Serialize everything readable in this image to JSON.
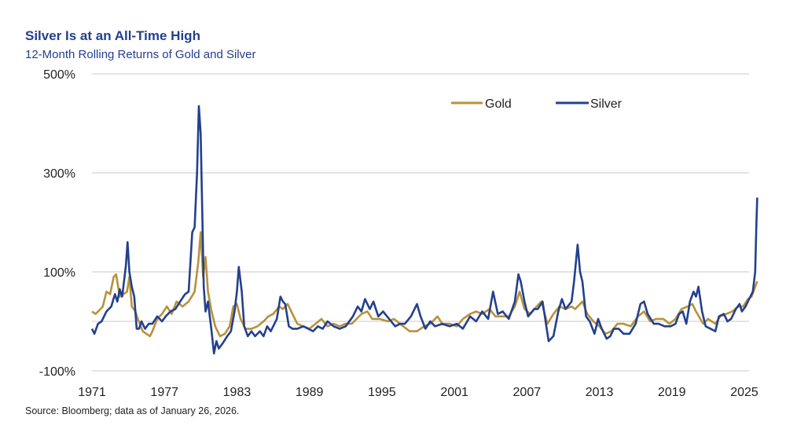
{
  "header": {
    "title": "Silver Is at an All-Time High",
    "subtitle": "12-Month Rolling Returns of Gold and Silver"
  },
  "footer": {
    "source": "Source: Bloomberg; data as of January 26, 2026."
  },
  "chart_data": {
    "type": "line",
    "title": "Silver Is at an All-Time High",
    "subtitle": "12-Month Rolling Returns of Gold and Silver",
    "xlabel": "",
    "ylabel": "",
    "xlim": [
      1971,
      2026.07
    ],
    "ylim": [
      -100,
      500
    ],
    "y_ticks": [
      500,
      300,
      100,
      -100
    ],
    "y_tick_labels": [
      "500%",
      "300%",
      "100%",
      "-100%"
    ],
    "gridlines_at": [
      500,
      300,
      100,
      0,
      -100
    ],
    "x_ticks": [
      1971,
      1977,
      1983,
      1989,
      1995,
      2001,
      2007,
      2013,
      2019,
      2025
    ],
    "x_tick_labels": [
      "1971",
      "1977",
      "1983",
      "1989",
      "1995",
      "2001",
      "2007",
      "2013",
      "2019",
      "2025"
    ],
    "grid": true,
    "legend_position": "top-right",
    "series": [
      {
        "name": "Gold",
        "color": "#b8913a",
        "x": [
          1971.0,
          1971.3,
          1971.6,
          1971.9,
          1972.2,
          1972.5,
          1972.8,
          1973.0,
          1973.3,
          1973.6,
          1973.9,
          1974.1,
          1974.3,
          1974.6,
          1974.8,
          1975.2,
          1975.5,
          1975.8,
          1976.0,
          1976.4,
          1976.8,
          1977.2,
          1977.6,
          1978.0,
          1978.5,
          1979.0,
          1979.5,
          1979.8,
          1980.0,
          1980.2,
          1980.4,
          1980.6,
          1980.9,
          1981.2,
          1981.6,
          1982.0,
          1982.4,
          1982.7,
          1983.0,
          1983.3,
          1983.7,
          1984.2,
          1984.7,
          1985.2,
          1985.6,
          1986.0,
          1986.5,
          1986.8,
          1987.2,
          1987.6,
          1988.0,
          1988.5,
          1989.0,
          1989.5,
          1990.0,
          1990.5,
          1991.0,
          1991.5,
          1992.0,
          1992.5,
          1993.3,
          1993.8,
          1994.2,
          1994.8,
          1995.5,
          1996.0,
          1996.5,
          1997.3,
          1997.9,
          1998.5,
          1999.0,
          1999.6,
          2000.0,
          2000.6,
          2001.2,
          2001.7,
          2002.3,
          2002.8,
          2003.3,
          2003.9,
          2004.4,
          2004.9,
          2005.5,
          2006.0,
          2006.4,
          2006.8,
          2007.3,
          2007.8,
          2008.2,
          2008.7,
          2009.2,
          2009.7,
          2010.2,
          2010.7,
          2011.0,
          2011.6,
          2012.0,
          2012.5,
          2013.0,
          2013.5,
          2014.0,
          2014.5,
          2015.0,
          2015.6,
          2016.2,
          2016.7,
          2017.2,
          2017.7,
          2018.3,
          2018.8,
          2019.3,
          2019.8,
          2020.3,
          2020.7,
          2021.0,
          2021.6,
          2022.0,
          2022.6,
          2023.0,
          2023.5,
          2024.0,
          2024.5,
          2024.9,
          2025.3,
          2025.6,
          2025.9,
          2026.07
        ],
        "values": [
          20,
          15,
          22,
          30,
          60,
          55,
          90,
          95,
          50,
          55,
          60,
          90,
          30,
          20,
          5,
          -20,
          -25,
          -30,
          -20,
          5,
          15,
          30,
          15,
          40,
          30,
          40,
          60,
          120,
          180,
          90,
          130,
          60,
          20,
          -10,
          -30,
          -25,
          -10,
          30,
          35,
          5,
          -15,
          -15,
          -10,
          0,
          10,
          15,
          30,
          25,
          35,
          15,
          -5,
          -10,
          -15,
          -5,
          5,
          -10,
          -5,
          -10,
          -5,
          -5,
          15,
          20,
          5,
          5,
          0,
          5,
          -5,
          -20,
          -20,
          -10,
          -5,
          10,
          -5,
          -5,
          -10,
          5,
          15,
          20,
          15,
          25,
          10,
          10,
          10,
          30,
          60,
          25,
          15,
          30,
          40,
          -5,
          15,
          30,
          25,
          30,
          25,
          40,
          15,
          0,
          -10,
          -25,
          -20,
          -5,
          -5,
          -10,
          10,
          20,
          0,
          5,
          5,
          -5,
          5,
          25,
          30,
          35,
          20,
          -5,
          5,
          -5,
          10,
          15,
          20,
          30,
          30,
          45,
          50,
          70,
          81
        ]
      },
      {
        "name": "Silver",
        "color": "#24408e",
        "x": [
          1971.0,
          1971.2,
          1971.5,
          1971.8,
          1972.2,
          1972.6,
          1972.9,
          1973.1,
          1973.3,
          1973.5,
          1973.8,
          1973.95,
          1974.1,
          1974.3,
          1974.5,
          1974.7,
          1974.9,
          1975.1,
          1975.4,
          1975.7,
          1976.0,
          1976.4,
          1976.8,
          1977.1,
          1977.5,
          1977.9,
          1978.3,
          1978.7,
          1979.0,
          1979.3,
          1979.5,
          1979.7,
          1979.85,
          1980.0,
          1980.15,
          1980.25,
          1980.4,
          1980.6,
          1980.9,
          1981.1,
          1981.3,
          1981.5,
          1981.8,
          1982.2,
          1982.5,
          1982.8,
          1983.0,
          1983.15,
          1983.4,
          1983.6,
          1983.9,
          1984.2,
          1984.5,
          1984.9,
          1985.2,
          1985.5,
          1985.8,
          1986.3,
          1986.6,
          1986.8,
          1987.0,
          1987.3,
          1987.6,
          1988.0,
          1988.5,
          1988.9,
          1989.3,
          1989.7,
          1990.1,
          1990.5,
          1991.0,
          1991.5,
          1992.0,
          1992.6,
          1993.0,
          1993.3,
          1993.6,
          1994.0,
          1994.3,
          1994.7,
          1995.1,
          1995.6,
          1996.1,
          1996.5,
          1996.9,
          1997.4,
          1997.9,
          1998.2,
          1998.6,
          1999.0,
          1999.4,
          2000.0,
          2000.6,
          2001.2,
          2001.7,
          2002.3,
          2002.8,
          2003.3,
          2003.8,
          2004.2,
          2004.6,
          2005.0,
          2005.5,
          2006.0,
          2006.3,
          2006.5,
          2006.8,
          2007.1,
          2007.6,
          2007.9,
          2008.3,
          2008.8,
          2009.2,
          2009.6,
          2009.9,
          2010.2,
          2010.7,
          2010.9,
          2011.2,
          2011.4,
          2011.6,
          2011.9,
          2012.2,
          2012.6,
          2012.9,
          2013.2,
          2013.6,
          2013.9,
          2014.2,
          2014.6,
          2015.0,
          2015.5,
          2016.0,
          2016.4,
          2016.7,
          2017.0,
          2017.5,
          2017.9,
          2018.4,
          2018.9,
          2019.3,
          2019.6,
          2019.9,
          2020.2,
          2020.5,
          2020.8,
          2021.0,
          2021.2,
          2021.5,
          2021.8,
          2022.2,
          2022.6,
          2022.9,
          2023.3,
          2023.6,
          2023.9,
          2024.3,
          2024.6,
          2024.8,
          2025.1,
          2025.4,
          2025.7,
          2025.9,
          2026.0,
          2026.07
        ],
        "values": [
          -15,
          -25,
          -5,
          0,
          20,
          30,
          55,
          40,
          65,
          50,
          110,
          160,
          100,
          70,
          50,
          -15,
          -15,
          0,
          -15,
          -5,
          -5,
          10,
          0,
          10,
          20,
          25,
          40,
          55,
          60,
          180,
          190,
          300,
          435,
          380,
          200,
          70,
          20,
          40,
          -20,
          -65,
          -40,
          -55,
          -45,
          -30,
          -20,
          20,
          60,
          110,
          60,
          -10,
          -30,
          -20,
          -30,
          -20,
          -30,
          -10,
          -20,
          5,
          50,
          40,
          35,
          -10,
          -15,
          -15,
          -10,
          -15,
          -20,
          -10,
          -15,
          0,
          -10,
          -15,
          -10,
          10,
          30,
          20,
          45,
          25,
          40,
          10,
          20,
          5,
          -10,
          -5,
          -5,
          10,
          35,
          10,
          -15,
          0,
          -10,
          -5,
          -10,
          -5,
          -15,
          10,
          0,
          20,
          5,
          60,
          15,
          20,
          5,
          40,
          95,
          80,
          40,
          10,
          25,
          25,
          40,
          -40,
          -30,
          20,
          45,
          25,
          40,
          80,
          155,
          100,
          80,
          10,
          0,
          -25,
          5,
          -15,
          -35,
          -30,
          -15,
          -15,
          -25,
          -25,
          -5,
          35,
          40,
          15,
          -5,
          -5,
          -10,
          -10,
          -5,
          15,
          20,
          -5,
          40,
          60,
          50,
          70,
          20,
          -10,
          -15,
          -20,
          10,
          15,
          0,
          5,
          25,
          35,
          20,
          30,
          45,
          60,
          100,
          200,
          250
        ]
      }
    ]
  }
}
